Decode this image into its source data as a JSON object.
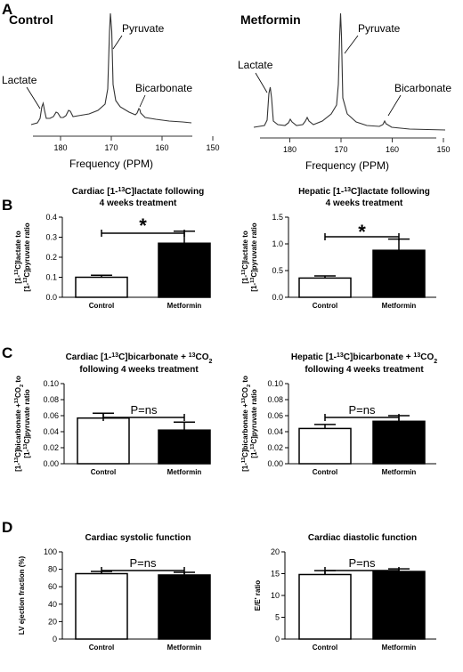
{
  "panels": {
    "A": "A",
    "B": "B",
    "C": "C",
    "D": "D"
  },
  "spectra": [
    {
      "title": "Control",
      "peaks": {
        "lactate": "Lactate",
        "pyruvate": "Pyruvate",
        "bicarbonate": "Bicarbonate"
      },
      "xlabel": "Frequency (PPM)",
      "xticks": [
        "180",
        "170",
        "160",
        "150"
      ]
    },
    {
      "title": "Metformin",
      "peaks": {
        "lactate": "Lactate",
        "pyruvate": "Pyruvate",
        "bicarbonate": "Bicarbonate"
      },
      "xlabel": "Frequency (PPM)",
      "xticks": [
        "180",
        "170",
        "160",
        "150"
      ]
    }
  ],
  "chart_data": [
    {
      "type": "bar",
      "title_lines": [
        "Cardiac [1-13C]lactate following",
        "4 weeks treatment"
      ],
      "ylabel_lines": [
        "[1-13C]lactate to",
        "[1-13C]pyruvate ratio"
      ],
      "categories": [
        "Control",
        "Metformin"
      ],
      "values": [
        0.1,
        0.27
      ],
      "errors": [
        0.01,
        0.06
      ],
      "fills": [
        "#ffffff",
        "#000000"
      ],
      "ylim": [
        0,
        0.4
      ],
      "yticks": [
        "0.0",
        "0.1",
        "0.2",
        "0.3",
        "0.4"
      ],
      "annotation": "*"
    },
    {
      "type": "bar",
      "title_lines": [
        "Hepatic [1-13C]lactate following",
        "4 weeks treatment"
      ],
      "ylabel_lines": [
        "[1-13C]lactate to",
        "[1-13C]pyruvate ratio"
      ],
      "categories": [
        "Control",
        "Metformin"
      ],
      "values": [
        0.36,
        0.88
      ],
      "errors": [
        0.04,
        0.21
      ],
      "fills": [
        "#ffffff",
        "#000000"
      ],
      "ylim": [
        0,
        1.5
      ],
      "yticks": [
        "0.0",
        "0.5",
        "1.0",
        "1.5"
      ],
      "annotation": "*"
    },
    {
      "type": "bar",
      "title_lines": [
        "Cardiac [1-13C]bicarbonate + 13CO2",
        "following 4 weeks treatment"
      ],
      "ylabel_lines": [
        "[1-13C]bicarbonate +13CO2 to",
        "[1-13C]pyruvate ratio"
      ],
      "categories": [
        "Control",
        "Metformin"
      ],
      "values": [
        0.057,
        0.042
      ],
      "errors": [
        0.006,
        0.01
      ],
      "fills": [
        "#ffffff",
        "#000000"
      ],
      "ylim": [
        0,
        0.1
      ],
      "yticks": [
        "0.00",
        "0.02",
        "0.04",
        "0.06",
        "0.08",
        "0.10"
      ],
      "annotation": "P=ns"
    },
    {
      "type": "bar",
      "title_lines": [
        "Hepatic [1-13C]bicarbonate + 13CO2",
        "following 4 weeks treatment"
      ],
      "ylabel_lines": [
        "[1-13C]bicarbonate +13CO2 to",
        "[1-13C]pyruvate ratio"
      ],
      "categories": [
        "Control",
        "Metformin"
      ],
      "values": [
        0.044,
        0.053
      ],
      "errors": [
        0.005,
        0.007
      ],
      "fills": [
        "#ffffff",
        "#000000"
      ],
      "ylim": [
        0,
        0.1
      ],
      "yticks": [
        "0.00",
        "0.02",
        "0.04",
        "0.06",
        "0.08",
        "0.10"
      ],
      "annotation": "P=ns"
    },
    {
      "type": "bar",
      "title_lines": [
        "Cardiac systolic function"
      ],
      "ylabel_lines": [
        "LV ejection fraction (%)"
      ],
      "categories": [
        "Control",
        "Metformin"
      ],
      "values": [
        75,
        73.5
      ],
      "errors": [
        2.5,
        3
      ],
      "fills": [
        "#ffffff",
        "#000000"
      ],
      "ylim": [
        0,
        100
      ],
      "yticks": [
        "0",
        "20",
        "40",
        "60",
        "80",
        "100"
      ],
      "annotation": "P=ns"
    },
    {
      "type": "bar",
      "title_lines": [
        "Cardiac diastolic function"
      ],
      "ylabel_lines": [
        "E/E' ratio"
      ],
      "categories": [
        "Control",
        "Metformin"
      ],
      "values": [
        14.8,
        15.5
      ],
      "errors": [
        0.9,
        0.6
      ],
      "fills": [
        "#ffffff",
        "#000000"
      ],
      "ylim": [
        0,
        20
      ],
      "yticks": [
        "0",
        "5",
        "10",
        "15",
        "20"
      ],
      "annotation": "P=ns"
    }
  ]
}
